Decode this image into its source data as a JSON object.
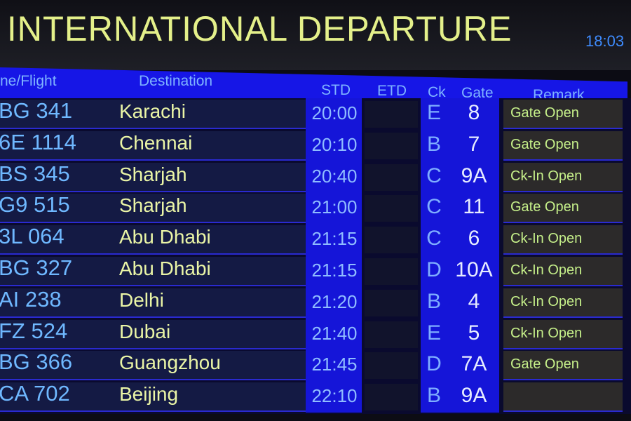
{
  "board": {
    "title": "INTERNATIONAL DEPARTURE",
    "clock": "18:03",
    "columns": {
      "flight": "ne/Flight",
      "destination": "Destination",
      "std": "STD",
      "etd": "ETD",
      "ck": "Ck",
      "gate": "Gate",
      "remark": "Remark"
    },
    "colors": {
      "header_blue": "#1616e6",
      "title_text": "#e4f08a",
      "flight_text": "#6fb8ff",
      "destination_text": "#eaf5a6",
      "remark_text": "#c6f08a"
    },
    "rows": [
      {
        "flight": "BG 341",
        "destination": "Karachi",
        "std": "20:00",
        "etd": "",
        "ck": "E",
        "gate": "8",
        "remark": "Gate Open"
      },
      {
        "flight": "6E 1114",
        "destination": "Chennai",
        "std": "20:10",
        "etd": "",
        "ck": "B",
        "gate": "7",
        "remark": "Gate Open"
      },
      {
        "flight": "BS 345",
        "destination": "Sharjah",
        "std": "20:40",
        "etd": "",
        "ck": "C",
        "gate": "9A",
        "remark": "Ck-In Open"
      },
      {
        "flight": "G9 515",
        "destination": "Sharjah",
        "std": "21:00",
        "etd": "",
        "ck": "C",
        "gate": "11",
        "remark": "Gate Open"
      },
      {
        "flight": "3L 064",
        "destination": "Abu Dhabi",
        "std": "21:15",
        "etd": "",
        "ck": "C",
        "gate": "6",
        "remark": "Ck-In Open"
      },
      {
        "flight": "BG 327",
        "destination": "Abu Dhabi",
        "std": "21:15",
        "etd": "",
        "ck": "D",
        "gate": "10A",
        "remark": "Ck-In Open"
      },
      {
        "flight": "AI 238",
        "destination": "Delhi",
        "std": "21:20",
        "etd": "",
        "ck": "B",
        "gate": "4",
        "remark": "Ck-In Open"
      },
      {
        "flight": "FZ 524",
        "destination": "Dubai",
        "std": "21:40",
        "etd": "",
        "ck": "E",
        "gate": "5",
        "remark": "Ck-In Open"
      },
      {
        "flight": "BG 366",
        "destination": "Guangzhou",
        "std": "21:45",
        "etd": "",
        "ck": "D",
        "gate": "7A",
        "remark": "Gate Open"
      },
      {
        "flight": "CA 702",
        "destination": "Beijing",
        "std": "22:10",
        "etd": "",
        "ck": "B",
        "gate": "9A",
        "remark": ""
      }
    ]
  }
}
